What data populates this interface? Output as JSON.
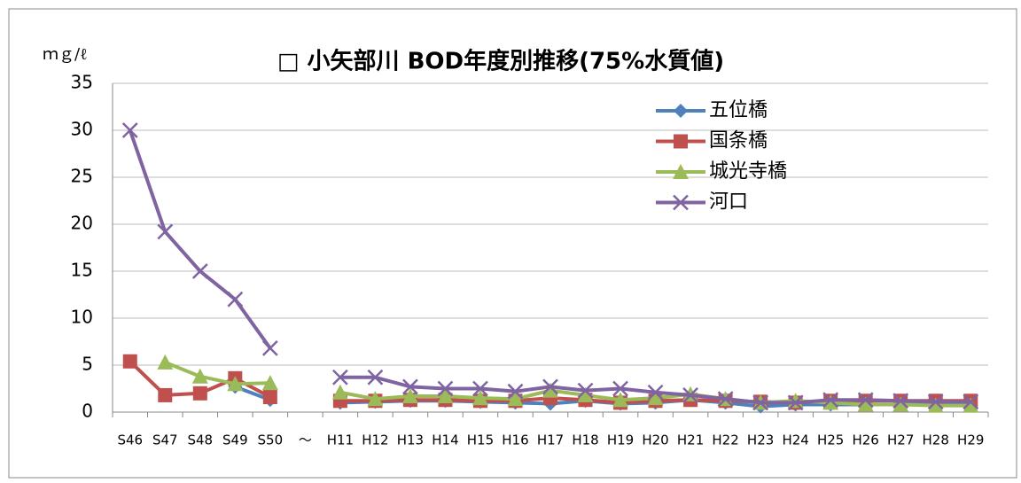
{
  "chart_data": {
    "type": "line",
    "title": "□ 小矢部川 BOD年度別推移(75%水質値)",
    "y_label": "ｍｇ/ℓ",
    "categories": [
      "S46",
      "S47",
      "S48",
      "S49",
      "S50",
      "～",
      "H11",
      "H12",
      "H13",
      "H14",
      "H15",
      "H16",
      "H17",
      "H18",
      "H19",
      "H20",
      "H21",
      "H22",
      "H23",
      "H24",
      "H25",
      "H26",
      "H27",
      "H28",
      "H29"
    ],
    "series": [
      {
        "name": "五位橋",
        "color": "#4f81bd",
        "marker": "diamond",
        "values": [
          null,
          null,
          null,
          2.7,
          1.3,
          null,
          1.0,
          1.1,
          1.2,
          1.2,
          1.1,
          1.0,
          0.9,
          1.2,
          0.9,
          1.0,
          1.3,
          1.0,
          0.6,
          0.8,
          0.8,
          0.8,
          0.8,
          0.8,
          0.8
        ]
      },
      {
        "name": "国条橋",
        "color": "#c0504d",
        "marker": "square",
        "values": [
          5.4,
          1.8,
          2.0,
          3.6,
          1.6,
          null,
          1.2,
          1.2,
          1.3,
          1.3,
          1.2,
          1.2,
          1.5,
          1.3,
          1.0,
          1.2,
          1.3,
          1.2,
          1.1,
          1.0,
          1.2,
          1.2,
          1.2,
          1.2,
          1.2
        ]
      },
      {
        "name": "城光寺橋",
        "color": "#9bbb59",
        "marker": "triangle",
        "values": [
          null,
          5.3,
          3.8,
          3.0,
          3.1,
          null,
          2.1,
          1.4,
          1.7,
          1.7,
          1.5,
          1.4,
          2.3,
          1.8,
          1.3,
          1.5,
          1.9,
          1.4,
          1.0,
          1.2,
          1.0,
          0.8,
          0.8,
          0.7,
          0.7
        ]
      },
      {
        "name": "河口",
        "color": "#8064a2",
        "marker": "x",
        "values": [
          30,
          19.2,
          15,
          12,
          6.8,
          null,
          3.7,
          3.7,
          2.7,
          2.5,
          2.5,
          2.2,
          2.7,
          2.3,
          2.5,
          2.1,
          1.8,
          1.4,
          1.0,
          1.0,
          1.3,
          1.3,
          1.2,
          1.1,
          1.1
        ]
      }
    ],
    "ylim": [
      0,
      35
    ],
    "yticks": [
      0,
      5,
      10,
      15,
      20,
      25,
      30,
      35
    ],
    "grid": true,
    "legend": "top-right"
  }
}
